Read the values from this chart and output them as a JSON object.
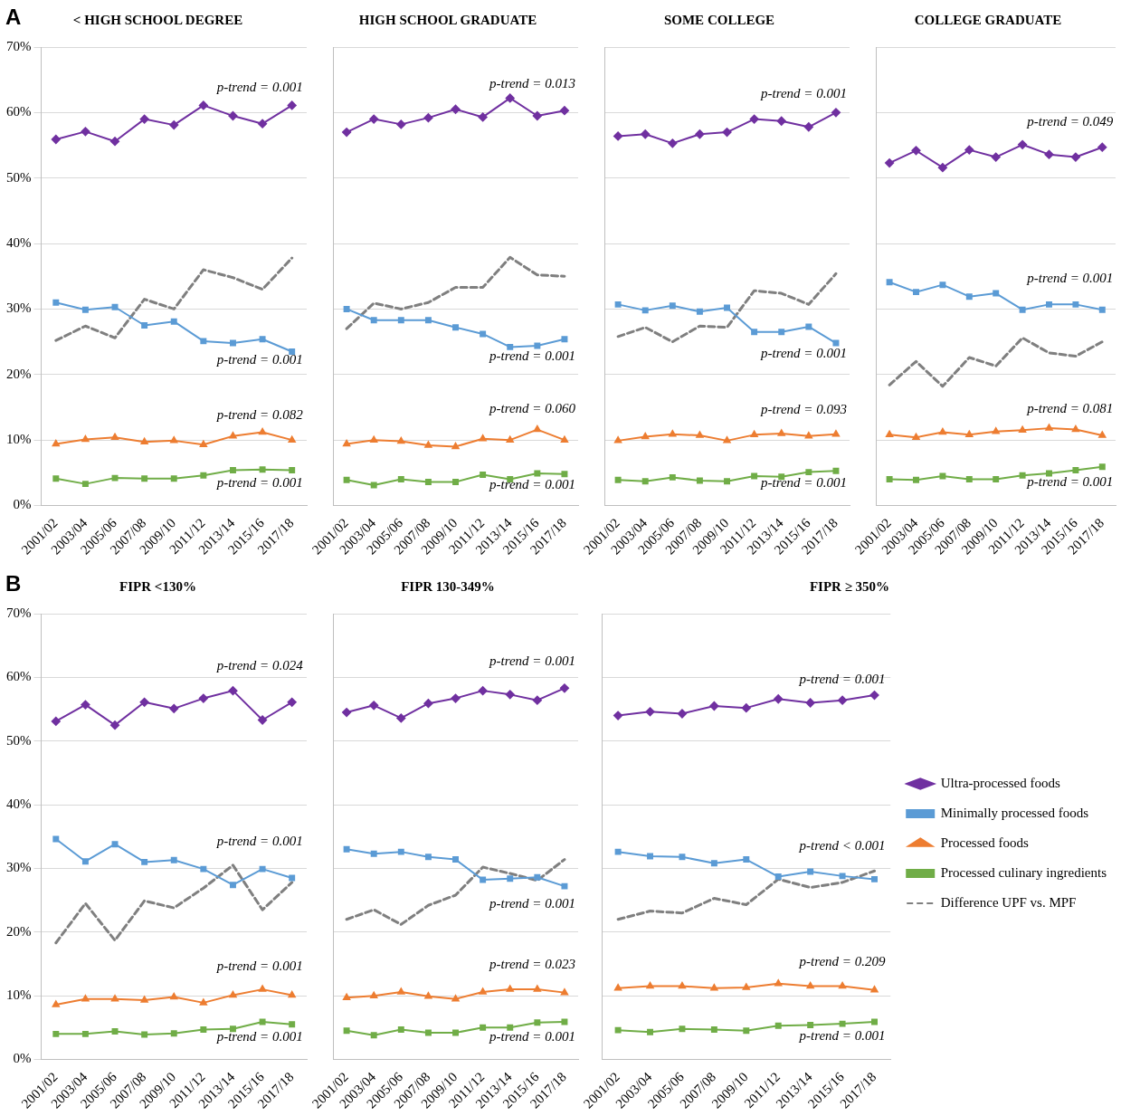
{
  "chart_data": [
    {
      "type": "line",
      "title": "< HIGH SCHOOL DEGREE",
      "categories": [
        "2001/02",
        "2003/04",
        "2005/06",
        "2007/08",
        "2009/10",
        "2011/12",
        "2013/14",
        "2015/16",
        "2017/18"
      ],
      "ylim": [
        0,
        70
      ],
      "yticks": [
        {
          "value": 0,
          "label": "0%"
        },
        {
          "value": 10,
          "label": "10%"
        },
        {
          "value": 20,
          "label": "20%"
        },
        {
          "value": 30,
          "label": "30%"
        },
        {
          "value": 40,
          "label": "40%"
        },
        {
          "value": 50,
          "label": "50%"
        },
        {
          "value": 60,
          "label": "60%"
        },
        {
          "value": 70,
          "label": "70%"
        }
      ],
      "grid": "y",
      "legend": false,
      "series": [
        {
          "color": "#7030a0",
          "marker": "diamond",
          "values": [
            55.9,
            57.1,
            55.6,
            59.0,
            58.1,
            61.1,
            59.5,
            58.3,
            61.1
          ]
        },
        {
          "color": "#5b9bd5",
          "marker": "square",
          "values": [
            31.0,
            29.9,
            30.3,
            27.5,
            28.1,
            25.1,
            24.8,
            25.4,
            23.5
          ]
        },
        {
          "color": "#ed7d31",
          "marker": "triangle",
          "values": [
            9.4,
            10.1,
            10.4,
            9.7,
            9.9,
            9.3,
            10.6,
            11.2,
            10.0
          ]
        },
        {
          "color": "#70ad47",
          "marker": "square",
          "values": [
            4.1,
            3.3,
            4.2,
            4.1,
            4.1,
            4.6,
            5.4,
            5.5,
            5.4
          ]
        },
        {
          "color": "#7f7f7f",
          "marker": "none",
          "line_style": "dashed",
          "values": [
            25.2,
            27.4,
            25.6,
            31.5,
            30.0,
            36.0,
            34.8,
            33.0,
            37.8
          ]
        }
      ],
      "annotations": [
        "A",
        "p-trend = 0.001",
        "p-trend = 0.001",
        "p-trend = 0.082",
        "p-trend = 0.001"
      ]
    },
    {
      "type": "line",
      "title": "HIGH SCHOOL GRADUATE",
      "categories": [
        "2001/02",
        "2003/04",
        "2005/06",
        "2007/08",
        "2009/10",
        "2011/12",
        "2013/14",
        "2015/16",
        "2017/18"
      ],
      "ylim": [
        0,
        70
      ],
      "yticks": [
        {
          "value": 0,
          "label": null
        },
        {
          "value": 10,
          "label": null
        },
        {
          "value": 20,
          "label": null
        },
        {
          "value": 30,
          "label": null
        },
        {
          "value": 40,
          "label": null
        },
        {
          "value": 50,
          "label": null
        },
        {
          "value": 60,
          "label": null
        },
        {
          "value": 70,
          "label": null
        }
      ],
      "grid": "y",
      "legend": false,
      "tick_labels": "x",
      "series": [
        {
          "color": "#7030a0",
          "marker": "diamond",
          "values": [
            57.0,
            59.0,
            58.2,
            59.2,
            60.5,
            59.3,
            62.2,
            59.5,
            60.3
          ]
        },
        {
          "color": "#5b9bd5",
          "marker": "square",
          "values": [
            30.0,
            28.3,
            28.3,
            28.3,
            27.2,
            26.2,
            24.2,
            24.4,
            25.4
          ]
        },
        {
          "color": "#ed7d31",
          "marker": "triangle",
          "values": [
            9.4,
            10.0,
            9.8,
            9.2,
            9.0,
            10.2,
            10.0,
            11.6,
            10.0
          ]
        },
        {
          "color": "#70ad47",
          "marker": "square",
          "values": [
            3.9,
            3.1,
            4.0,
            3.6,
            3.6,
            4.7,
            4.0,
            4.9,
            4.8
          ]
        },
        {
          "color": "#7f7f7f",
          "marker": "none",
          "line_style": "dashed",
          "values": [
            27.0,
            30.9,
            30.0,
            31.0,
            33.3,
            33.3,
            37.9,
            35.2,
            35.0
          ]
        }
      ],
      "annotations": [
        "p-trend = 0.013",
        "p-trend = 0.001",
        "p-trend = 0.060",
        "p-trend = 0.001"
      ]
    },
    {
      "type": "line",
      "title": "SOME COLLEGE",
      "categories": [
        "2001/02",
        "2003/04",
        "2005/06",
        "2007/08",
        "2009/10",
        "2011/12",
        "2013/14",
        "2015/16",
        "2017/18"
      ],
      "ylim": [
        0,
        70
      ],
      "yticks": [
        {
          "value": 0,
          "label": null
        },
        {
          "value": 10,
          "label": null
        },
        {
          "value": 20,
          "label": null
        },
        {
          "value": 30,
          "label": null
        },
        {
          "value": 40,
          "label": null
        },
        {
          "value": 50,
          "label": null
        },
        {
          "value": 60,
          "label": null
        },
        {
          "value": 70,
          "label": null
        }
      ],
      "grid": "y",
      "legend": false,
      "tick_labels": "x",
      "series": [
        {
          "color": "#7030a0",
          "marker": "diamond",
          "values": [
            56.4,
            56.7,
            55.3,
            56.7,
            57.0,
            59.0,
            58.7,
            57.8,
            60.0
          ]
        },
        {
          "color": "#5b9bd5",
          "marker": "square",
          "values": [
            30.7,
            29.8,
            30.5,
            29.6,
            30.2,
            26.5,
            26.5,
            27.3,
            24.8
          ]
        },
        {
          "color": "#ed7d31",
          "marker": "triangle",
          "values": [
            9.9,
            10.5,
            10.9,
            10.7,
            9.9,
            10.8,
            11.0,
            10.6,
            10.9
          ]
        },
        {
          "color": "#70ad47",
          "marker": "square",
          "values": [
            3.9,
            3.7,
            4.3,
            3.8,
            3.7,
            4.5,
            4.4,
            5.1,
            5.3
          ]
        },
        {
          "color": "#7f7f7f",
          "marker": "none",
          "line_style": "dashed",
          "values": [
            25.8,
            27.2,
            25.0,
            27.4,
            27.2,
            32.8,
            32.4,
            30.7,
            35.4
          ]
        }
      ],
      "annotations": [
        "p-trend = 0.001",
        "p-trend = 0.001",
        "p-trend = 0.093",
        "p-trend = 0.001"
      ]
    },
    {
      "type": "line",
      "title": "COLLEGE GRADUATE",
      "categories": [
        "2001/02",
        "2003/04",
        "2005/06",
        "2007/08",
        "2009/10",
        "2011/12",
        "2013/14",
        "2015/16",
        "2017/18"
      ],
      "ylim": [
        0,
        70
      ],
      "yticks": [
        {
          "value": 0,
          "label": null
        },
        {
          "value": 10,
          "label": null
        },
        {
          "value": 20,
          "label": null
        },
        {
          "value": 30,
          "label": null
        },
        {
          "value": 40,
          "label": null
        },
        {
          "value": 50,
          "label": null
        },
        {
          "value": 60,
          "label": null
        },
        {
          "value": 70,
          "label": null
        }
      ],
      "grid": "y",
      "legend": false,
      "tick_labels": "x",
      "series": [
        {
          "color": "#7030a0",
          "marker": "diamond",
          "values": [
            52.3,
            54.2,
            51.6,
            54.3,
            53.2,
            55.1,
            53.6,
            53.2,
            54.7
          ]
        },
        {
          "color": "#5b9bd5",
          "marker": "square",
          "values": [
            34.1,
            32.6,
            33.7,
            31.9,
            32.4,
            29.9,
            30.7,
            30.7,
            29.9
          ]
        },
        {
          "color": "#ed7d31",
          "marker": "triangle",
          "values": [
            10.8,
            10.4,
            11.2,
            10.8,
            11.3,
            11.5,
            11.8,
            11.6,
            10.7
          ]
        },
        {
          "color": "#70ad47",
          "marker": "square",
          "values": [
            4.0,
            3.9,
            4.5,
            4.0,
            4.0,
            4.6,
            4.9,
            5.4,
            5.9
          ]
        },
        {
          "color": "#7f7f7f",
          "marker": "none",
          "line_style": "dashed",
          "values": [
            18.4,
            22.0,
            18.2,
            22.6,
            21.3,
            25.6,
            23.3,
            22.8,
            25.0
          ]
        }
      ],
      "annotations": [
        "p-trend = 0.049",
        "p-trend = 0.001",
        "p-trend = 0.081",
        "p-trend = 0.001"
      ]
    },
    {
      "type": "line",
      "title": "FIPR <130%",
      "categories": [
        "2001/02",
        "2003/04",
        "2005/06",
        "2007/08",
        "2009/10",
        "2011/12",
        "2013/14",
        "2015/16",
        "2017/18"
      ],
      "ylim": [
        0,
        70
      ],
      "yticks": [
        {
          "value": 0,
          "label": "0%"
        },
        {
          "value": 10,
          "label": "10%"
        },
        {
          "value": 20,
          "label": "20%"
        },
        {
          "value": 30,
          "label": "30%"
        },
        {
          "value": 40,
          "label": "40%"
        },
        {
          "value": 50,
          "label": "50%"
        },
        {
          "value": 60,
          "label": "60%"
        },
        {
          "value": 70,
          "label": "70%"
        }
      ],
      "grid": "y",
      "legend": false,
      "series": [
        {
          "color": "#7030a0",
          "marker": "diamond",
          "values": [
            53.1,
            55.7,
            52.5,
            56.1,
            55.1,
            56.7,
            57.9,
            53.3,
            56.1
          ]
        },
        {
          "color": "#5b9bd5",
          "marker": "square",
          "values": [
            34.6,
            31.1,
            33.8,
            31.0,
            31.3,
            29.9,
            27.4,
            29.9,
            28.5
          ]
        },
        {
          "color": "#ed7d31",
          "marker": "triangle",
          "values": [
            8.6,
            9.5,
            9.5,
            9.3,
            9.8,
            8.9,
            10.1,
            11.0,
            10.1
          ]
        },
        {
          "color": "#70ad47",
          "marker": "square",
          "values": [
            4.0,
            4.0,
            4.4,
            3.9,
            4.1,
            4.7,
            4.8,
            5.9,
            5.5
          ]
        },
        {
          "color": "#7f7f7f",
          "marker": "none",
          "line_style": "dashed",
          "values": [
            18.3,
            24.5,
            18.7,
            24.9,
            23.8,
            26.9,
            30.5,
            23.5,
            27.8
          ]
        }
      ],
      "annotations": [
        "B",
        "p-trend = 0.024",
        "p-trend = 0.001",
        "p-trend = 0.001",
        "p-trend = 0.001"
      ]
    },
    {
      "type": "line",
      "title": "FIPR 130-349%",
      "categories": [
        "2001/02",
        "2003/04",
        "2005/06",
        "2007/08",
        "2009/10",
        "2011/12",
        "2013/14",
        "2015/16",
        "2017/18"
      ],
      "ylim": [
        0,
        70
      ],
      "yticks": [
        {
          "value": 0,
          "label": null
        },
        {
          "value": 10,
          "label": null
        },
        {
          "value": 20,
          "label": null
        },
        {
          "value": 30,
          "label": null
        },
        {
          "value": 40,
          "label": null
        },
        {
          "value": 50,
          "label": null
        },
        {
          "value": 60,
          "label": null
        },
        {
          "value": 70,
          "label": null
        }
      ],
      "grid": "y",
      "legend": false,
      "tick_labels": "x",
      "series": [
        {
          "color": "#7030a0",
          "marker": "diamond",
          "values": [
            54.5,
            55.6,
            53.6,
            55.9,
            56.7,
            57.9,
            57.3,
            56.4,
            58.3
          ]
        },
        {
          "color": "#5b9bd5",
          "marker": "square",
          "values": [
            33.0,
            32.3,
            32.6,
            31.8,
            31.4,
            28.2,
            28.4,
            28.6,
            27.2
          ]
        },
        {
          "color": "#ed7d31",
          "marker": "triangle",
          "values": [
            9.7,
            10.0,
            10.6,
            9.9,
            9.5,
            10.6,
            11.0,
            11.0,
            10.5
          ]
        },
        {
          "color": "#70ad47",
          "marker": "square",
          "values": [
            4.5,
            3.8,
            4.7,
            4.2,
            4.2,
            5.0,
            5.0,
            5.8,
            5.9
          ]
        },
        {
          "color": "#7f7f7f",
          "marker": "none",
          "line_style": "dashed",
          "values": [
            22.0,
            23.5,
            21.2,
            24.2,
            25.8,
            30.2,
            29.2,
            28.1,
            31.4
          ]
        }
      ],
      "annotations": [
        "p-trend = 0.001",
        "p-trend = 0.001",
        "p-trend = 0.023",
        "p-trend = 0.001"
      ]
    },
    {
      "type": "line",
      "title": "FIPR ≥ 350%",
      "categories": [
        "2001/02",
        "2003/04",
        "2005/06",
        "2007/08",
        "2009/10",
        "2011/12",
        "2013/14",
        "2015/16",
        "2017/18"
      ],
      "ylim": [
        0,
        70
      ],
      "yticks": [
        {
          "value": 0,
          "label": null
        },
        {
          "value": 10,
          "label": null
        },
        {
          "value": 20,
          "label": null
        },
        {
          "value": 30,
          "label": null
        },
        {
          "value": 40,
          "label": null
        },
        {
          "value": 50,
          "label": null
        },
        {
          "value": 60,
          "label": null
        },
        {
          "value": 70,
          "label": null
        }
      ],
      "grid": "y",
      "legend": "right",
      "tick_labels": "x",
      "series": [
        {
          "name": "Ultra-processed foods",
          "color": "#7030a0",
          "marker": "diamond",
          "values": [
            54.0,
            54.6,
            54.3,
            55.5,
            55.2,
            56.6,
            56.0,
            56.4,
            57.2
          ]
        },
        {
          "name": "Minimally processed foods",
          "color": "#5b9bd5",
          "marker": "square",
          "values": [
            32.6,
            31.9,
            31.8,
            30.8,
            31.4,
            28.7,
            29.5,
            28.8,
            28.3
          ]
        },
        {
          "name": "Processed foods",
          "color": "#ed7d31",
          "marker": "triangle",
          "values": [
            11.2,
            11.5,
            11.5,
            11.2,
            11.3,
            11.9,
            11.5,
            11.5,
            10.9
          ]
        },
        {
          "name": "Processed culinary ingredients",
          "color": "#70ad47",
          "marker": "square",
          "values": [
            4.6,
            4.3,
            4.8,
            4.7,
            4.5,
            5.3,
            5.4,
            5.6,
            5.9
          ]
        },
        {
          "name": "Difference UPF vs. MPF",
          "color": "#7f7f7f",
          "marker": "none",
          "line_style": "dashed",
          "values": [
            22.0,
            23.3,
            23.0,
            25.3,
            24.3,
            28.3,
            27.0,
            27.8,
            29.6
          ]
        }
      ],
      "annotations": [
        "p-trend = 0.001",
        "p-trend < 0.001",
        "p-trend = 0.209",
        "p-trend = 0.001"
      ]
    }
  ]
}
